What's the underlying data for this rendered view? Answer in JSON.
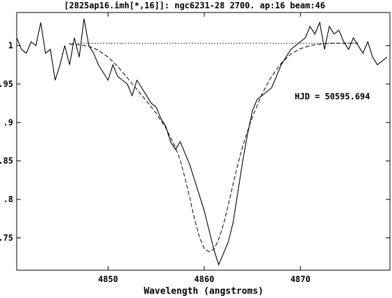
{
  "title": "[2825ap16.imh[*,16]]: ngc6231-28 2700. ap:16 beam:46",
  "xlabel": "Wavelength (angstroms)",
  "annotation": "HJD = 50595.694",
  "chart_data": {
    "type": "line",
    "title": "[2825ap16.imh[*,16]]: ngc6231-28 2700. ap:16 beam:46",
    "xlabel": "Wavelength (angstroms)",
    "ylabel": "",
    "xlim": [
      4840.5,
      4879.3
    ],
    "ylim": [
      0.708,
      1.043
    ],
    "x_ticks": [
      4850,
      4860,
      4870
    ],
    "x_tick_labels": [
      "4850",
      "4860",
      "4870"
    ],
    "y_ticks": [
      0.75,
      0.8,
      0.85,
      0.9,
      0.95,
      1.0
    ],
    "y_tick_labels": [
      ".75",
      ".8",
      ".85",
      ".9",
      ".95",
      "1"
    ],
    "grid": false,
    "series": [
      {
        "style": "solid",
        "x": [
          4840.5,
          4841.0,
          4841.5,
          4842.0,
          4842.5,
          4843.0,
          4843.5,
          4844.0,
          4844.5,
          4845.0,
          4845.5,
          4846.0,
          4846.5,
          4847.0,
          4847.5,
          4848.0,
          4848.5,
          4849.0,
          4849.5,
          4850.0,
          4850.5,
          4851.0,
          4851.5,
          4852.0,
          4852.5,
          4853.0,
          4853.5,
          4854.0,
          4854.5,
          4855.0,
          4855.5,
          4856.0,
          4856.5,
          4857.0,
          4857.5,
          4858.0,
          4858.5,
          4859.0,
          4859.5,
          4860.0,
          4860.5,
          4861.0,
          4861.5,
          4862.0,
          4862.5,
          4863.0,
          4863.5,
          4864.0,
          4864.5,
          4865.0,
          4865.5,
          4866.0,
          4866.5,
          4867.0,
          4867.5,
          4868.0,
          4868.5,
          4869.0,
          4869.5,
          4870.0,
          4870.5,
          4871.0,
          4871.5,
          4872.0,
          4872.5,
          4873.0,
          4873.5,
          4874.0,
          4874.5,
          4875.0,
          4875.5,
          4876.0,
          4876.5,
          4877.0,
          4877.5,
          4878.0,
          4878.5,
          4879.0
        ],
        "values": [
          1.01,
          0.995,
          0.99,
          1.005,
          1.0,
          1.03,
          0.99,
          0.995,
          0.955,
          0.975,
          1.0,
          0.975,
          1.01,
          0.985,
          1.035,
          1.0,
          0.99,
          0.975,
          0.965,
          0.955,
          0.975,
          0.96,
          0.955,
          0.95,
          0.935,
          0.955,
          0.945,
          0.935,
          0.925,
          0.92,
          0.905,
          0.895,
          0.875,
          0.865,
          0.875,
          0.86,
          0.845,
          0.825,
          0.805,
          0.785,
          0.76,
          0.735,
          0.715,
          0.73,
          0.745,
          0.77,
          0.81,
          0.85,
          0.885,
          0.915,
          0.93,
          0.935,
          0.94,
          0.945,
          0.96,
          0.975,
          0.985,
          0.995,
          1.0,
          1.005,
          1.01,
          1.025,
          1.015,
          1.03,
          0.995,
          1.025,
          1.015,
          1.02,
          1.005,
          0.995,
          1.01,
          1.0,
          0.99,
          1.005,
          0.985,
          0.975,
          0.98,
          0.985
        ]
      },
      {
        "style": "dashed",
        "x": [
          4846.0,
          4847.0,
          4848.0,
          4849.0,
          4850.0,
          4851.0,
          4852.0,
          4853.0,
          4854.0,
          4855.0,
          4856.0,
          4857.0,
          4857.5,
          4858.0,
          4858.5,
          4859.0,
          4859.5,
          4860.0,
          4860.5,
          4861.0,
          4861.5,
          4862.0,
          4862.5,
          4863.0,
          4863.5,
          4864.0,
          4864.5,
          4865.0,
          4866.0,
          4867.0,
          4868.0,
          4869.0,
          4870.0,
          4871.0,
          4872.0,
          4873.0,
          4874.0,
          4875.0,
          4876.0
        ],
        "values": [
          1.002,
          1.001,
          0.999,
          0.994,
          0.985,
          0.973,
          0.958,
          0.943,
          0.928,
          0.912,
          0.893,
          0.868,
          0.851,
          0.828,
          0.802,
          0.774,
          0.751,
          0.736,
          0.732,
          0.735,
          0.748,
          0.768,
          0.793,
          0.82,
          0.846,
          0.869,
          0.889,
          0.907,
          0.937,
          0.96,
          0.977,
          0.989,
          0.996,
          1.0,
          1.002,
          1.003,
          1.003,
          1.003,
          1.003
        ]
      },
      {
        "style": "dotted",
        "x": [
          4846.0,
          4876.0
        ],
        "values": [
          1.003,
          1.003
        ]
      }
    ]
  }
}
